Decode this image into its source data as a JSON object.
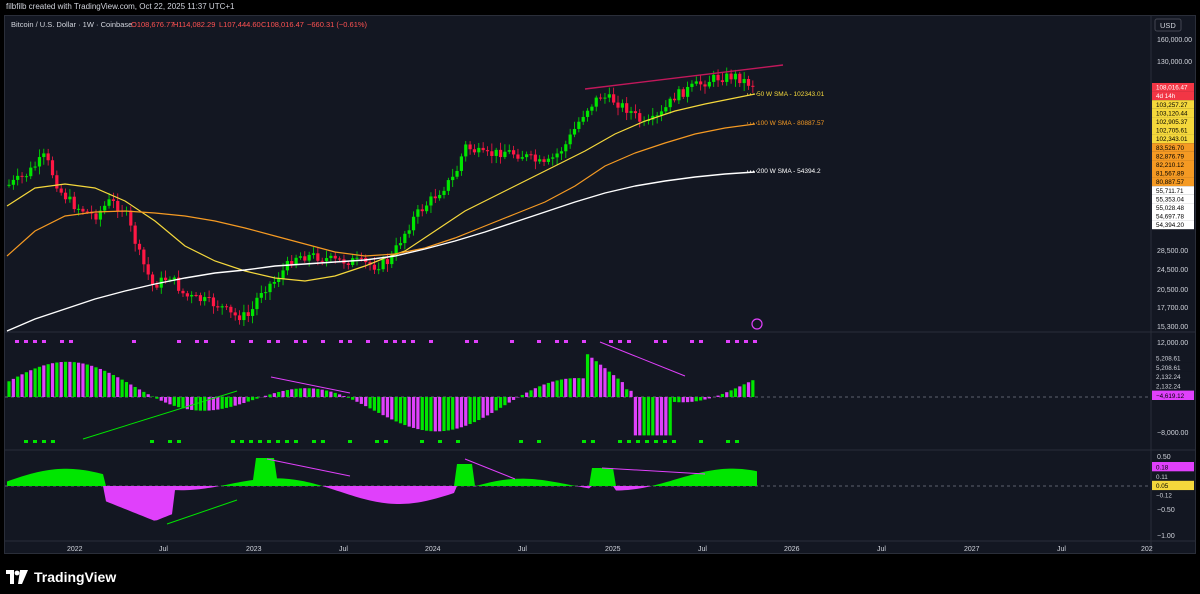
{
  "header": {
    "attribution": "filbfilb created with TradingView.com, Oct 22, 2025 11:37 UTC+1"
  },
  "symbol": {
    "name": "Bitcoin / U.S. Dollar · 1W · Coinbase",
    "open": "O108,676.77",
    "high": "H114,082.29",
    "low": "L107,444.60",
    "close": "C108,016.47",
    "change": "−660.31 (−0.61%)"
  },
  "currency": "USD",
  "price_axis": [
    "160,000.00",
    "130,000.00",
    "28,500.00",
    "24,500.00",
    "20,500.00",
    "17,700.00",
    "15,300.00"
  ],
  "price_tags": [
    {
      "text": "108,016.47",
      "bg": "#f23645",
      "fg": "#ffffff"
    },
    {
      "text": "4d 14h",
      "bg": "#f23645",
      "fg": "#ffffff"
    },
    {
      "text": "103,257.27",
      "bg": "#f5d83c",
      "fg": "#000000"
    },
    {
      "text": "103,120.44",
      "bg": "#f5d83c",
      "fg": "#000000"
    },
    {
      "text": "102,905.37",
      "bg": "#f5d83c",
      "fg": "#000000"
    },
    {
      "text": "102,705.61",
      "bg": "#f5d83c",
      "fg": "#000000"
    },
    {
      "text": "102,343.01",
      "bg": "#f5d83c",
      "fg": "#000000"
    },
    {
      "text": "83,526.70",
      "bg": "#f59a23",
      "fg": "#000000"
    },
    {
      "text": "82,876.79",
      "bg": "#f59a23",
      "fg": "#000000"
    },
    {
      "text": "82,210.12",
      "bg": "#f59a23",
      "fg": "#000000"
    },
    {
      "text": "81,567.89",
      "bg": "#f59a23",
      "fg": "#000000"
    },
    {
      "text": "80,887.57",
      "bg": "#f59a23",
      "fg": "#000000"
    },
    {
      "text": "55,711.71",
      "bg": "#ffffff",
      "fg": "#000000"
    },
    {
      "text": "55,353.04",
      "bg": "#ffffff",
      "fg": "#000000"
    },
    {
      "text": "55,028.48",
      "bg": "#ffffff",
      "fg": "#000000"
    },
    {
      "text": "54,697.78",
      "bg": "#ffffff",
      "fg": "#000000"
    },
    {
      "text": "54,394.20",
      "bg": "#ffffff",
      "fg": "#000000"
    }
  ],
  "sma_labels": [
    {
      "text": "50 W SMA - 102343.01",
      "color": "#f5d83c"
    },
    {
      "text": "100 W SMA - 80887.57",
      "color": "#f59a23"
    },
    {
      "text": "200 W SMA - 54394.2",
      "color": "#ffffff"
    }
  ],
  "osc1_axis": [
    "12,000.00",
    "0.00",
    "−8,000.00"
  ],
  "osc1_tags": [
    {
      "text": "5,208.61",
      "bg": "#131722",
      "fg": "#d1d4dc"
    },
    {
      "text": "5,208.61",
      "bg": "#131722",
      "fg": "#d1d4dc"
    },
    {
      "text": "2,132.24",
      "bg": "#131722",
      "fg": "#d1d4dc"
    },
    {
      "text": "2,132.24",
      "bg": "#131722",
      "fg": "#d1d4dc"
    },
    {
      "text": "−4,619.12",
      "bg": "#e040fb",
      "fg": "#000000"
    }
  ],
  "osc2_axis": [
    "0.50",
    "−0.50",
    "−1.00"
  ],
  "osc2_tags": [
    {
      "text": "0.18",
      "bg": "#e040fb",
      "fg": "#000000"
    },
    {
      "text": "0.11",
      "bg": "#131722",
      "fg": "#d1d4dc"
    },
    {
      "text": "0.05",
      "bg": "#f5d83c",
      "fg": "#000000"
    },
    {
      "text": "−0.12",
      "bg": "#131722",
      "fg": "#d1d4dc"
    }
  ],
  "time_axis": [
    "2022",
    "Jul",
    "2023",
    "Jul",
    "2024",
    "Jul",
    "2025",
    "Jul",
    "2026",
    "Jul",
    "2027",
    "Jul",
    "202"
  ],
  "footer": {
    "brand": "TradingView"
  },
  "colors": {
    "up": "#00e600",
    "down": "#ff1744",
    "osc_pos": "#00e600",
    "osc_neg": "#e040fb",
    "sma50": "#f5d83c",
    "sma100": "#f59a23",
    "sma200": "#ffffff",
    "trendline": "#c2185b"
  }
}
